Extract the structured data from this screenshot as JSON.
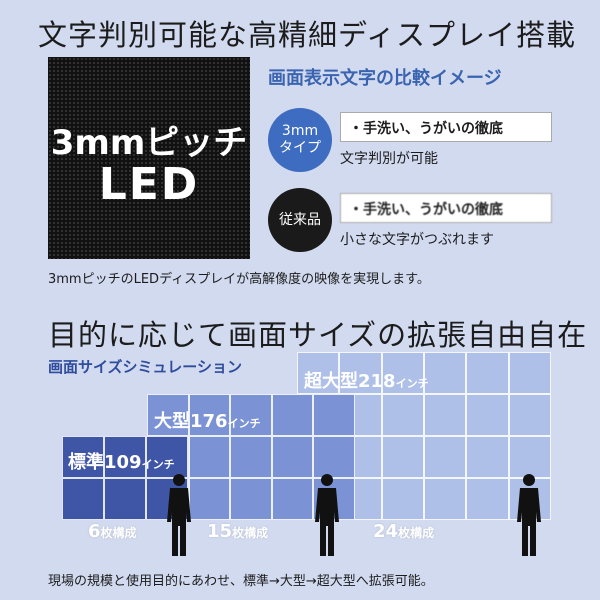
{
  "header1": {
    "title": "文字判別可能な高精細ディスプレイ搭載"
  },
  "led_panel": {
    "pitch": "3mmピッチ",
    "label": "LED"
  },
  "comparison": {
    "title": "画面表示文字の比較イメージ",
    "pitch_3mm": {
      "badge_line1": "3mm",
      "badge_line2": "タイプ",
      "sample_text": "・手洗い、うがいの徹底",
      "caption": "文字判別が可能"
    },
    "conventional": {
      "badge": "従来品",
      "sample_text": "・手洗い、うがいの徹底",
      "caption": "小さな文字がつぶれます"
    }
  },
  "description1": "3mmピッチのLEDディスプレイが高解像度の映像を実現します。",
  "header2": {
    "title": "目的に応じて画面サイズの拡張自由自在"
  },
  "simulation": {
    "title": "画面サイズシミュレーション",
    "sizes": [
      {
        "name": "標準",
        "size": "109",
        "unit": "インチ",
        "count": "6",
        "count_unit": "枚構成",
        "color": "#3f55a6"
      },
      {
        "name": "大型",
        "size": "176",
        "unit": "インチ",
        "count": "15",
        "count_unit": "枚構成",
        "color": "#7b93d4"
      },
      {
        "name": "超大型",
        "size": "218",
        "unit": "インチ",
        "count": "24",
        "count_unit": "枚構成",
        "color": "#aebfe8"
      }
    ]
  },
  "description2": "現場の規模と使用目的にあわせ、標準→大型→超大型へ拡張可能。",
  "colors": {
    "background": "#d2daf0",
    "accent_blue": "#3d6cc0",
    "heading_blue": "#2f4d9c"
  },
  "icons": [
    "person-silhouette-icon"
  ]
}
